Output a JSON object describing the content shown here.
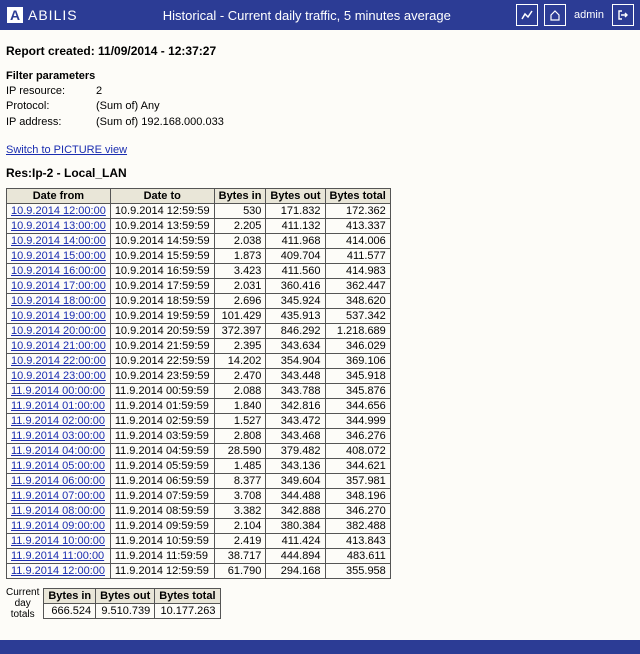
{
  "header": {
    "brand": "ABILIS",
    "title": "Historical - Current daily traffic, 5 minutes average",
    "admin": "admin"
  },
  "report_created": "Report created: 11/09/2014 - 12:37:27",
  "filter": {
    "heading": "Filter parameters",
    "rows": [
      {
        "label": "IP resource:",
        "value": "2"
      },
      {
        "label": "Protocol:",
        "value": "(Sum of) Any"
      },
      {
        "label": "IP address:",
        "value": "(Sum of) 192.168.000.033"
      }
    ]
  },
  "switch_link": "Switch to PICTURE view",
  "resource_title": "Res:Ip-2 - Local_LAN",
  "table": {
    "headers": [
      "Date from",
      "Date to",
      "Bytes in",
      "Bytes out",
      "Bytes total"
    ],
    "rows": [
      [
        "10.9.2014 12:00:00",
        "10.9.2014 12:59:59",
        "530",
        "171.832",
        "172.362"
      ],
      [
        "10.9.2014 13:00:00",
        "10.9.2014 13:59:59",
        "2.205",
        "411.132",
        "413.337"
      ],
      [
        "10.9.2014 14:00:00",
        "10.9.2014 14:59:59",
        "2.038",
        "411.968",
        "414.006"
      ],
      [
        "10.9.2014 15:00:00",
        "10.9.2014 15:59:59",
        "1.873",
        "409.704",
        "411.577"
      ],
      [
        "10.9.2014 16:00:00",
        "10.9.2014 16:59:59",
        "3.423",
        "411.560",
        "414.983"
      ],
      [
        "10.9.2014 17:00:00",
        "10.9.2014 17:59:59",
        "2.031",
        "360.416",
        "362.447"
      ],
      [
        "10.9.2014 18:00:00",
        "10.9.2014 18:59:59",
        "2.696",
        "345.924",
        "348.620"
      ],
      [
        "10.9.2014 19:00:00",
        "10.9.2014 19:59:59",
        "101.429",
        "435.913",
        "537.342"
      ],
      [
        "10.9.2014 20:00:00",
        "10.9.2014 20:59:59",
        "372.397",
        "846.292",
        "1.218.689"
      ],
      [
        "10.9.2014 21:00:00",
        "10.9.2014 21:59:59",
        "2.395",
        "343.634",
        "346.029"
      ],
      [
        "10.9.2014 22:00:00",
        "10.9.2014 22:59:59",
        "14.202",
        "354.904",
        "369.106"
      ],
      [
        "10.9.2014 23:00:00",
        "10.9.2014 23:59:59",
        "2.470",
        "343.448",
        "345.918"
      ],
      [
        "11.9.2014 00:00:00",
        "11.9.2014 00:59:59",
        "2.088",
        "343.788",
        "345.876"
      ],
      [
        "11.9.2014 01:00:00",
        "11.9.2014 01:59:59",
        "1.840",
        "342.816",
        "344.656"
      ],
      [
        "11.9.2014 02:00:00",
        "11.9.2014 02:59:59",
        "1.527",
        "343.472",
        "344.999"
      ],
      [
        "11.9.2014 03:00:00",
        "11.9.2014 03:59:59",
        "2.808",
        "343.468",
        "346.276"
      ],
      [
        "11.9.2014 04:00:00",
        "11.9.2014 04:59:59",
        "28.590",
        "379.482",
        "408.072"
      ],
      [
        "11.9.2014 05:00:00",
        "11.9.2014 05:59:59",
        "1.485",
        "343.136",
        "344.621"
      ],
      [
        "11.9.2014 06:00:00",
        "11.9.2014 06:59:59",
        "8.377",
        "349.604",
        "357.981"
      ],
      [
        "11.9.2014 07:00:00",
        "11.9.2014 07:59:59",
        "3.708",
        "344.488",
        "348.196"
      ],
      [
        "11.9.2014 08:00:00",
        "11.9.2014 08:59:59",
        "3.382",
        "342.888",
        "346.270"
      ],
      [
        "11.9.2014 09:00:00",
        "11.9.2014 09:59:59",
        "2.104",
        "380.384",
        "382.488"
      ],
      [
        "11.9.2014 10:00:00",
        "11.9.2014 10:59:59",
        "2.419",
        "411.424",
        "413.843"
      ],
      [
        "11.9.2014 11:00:00",
        "11.9.2014 11:59:59",
        "38.717",
        "444.894",
        "483.611"
      ],
      [
        "11.9.2014 12:00:00",
        "11.9.2014 12:59:59",
        "61.790",
        "294.168",
        "355.958"
      ]
    ]
  },
  "totals": {
    "label_lines": [
      "Current",
      "day",
      "totals"
    ],
    "headers": [
      "Bytes in",
      "Bytes out",
      "Bytes total"
    ],
    "values": [
      "666.524",
      "9.510.739",
      "10.177.263"
    ]
  }
}
